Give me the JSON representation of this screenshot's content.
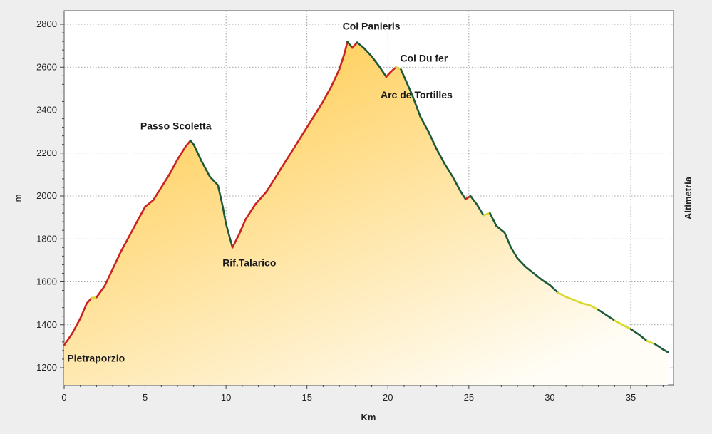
{
  "chart_data": {
    "type": "area",
    "xlabel": "Km",
    "ylabel": "m",
    "right_label": "Altimetria",
    "xlim": [
      0,
      37.5
    ],
    "ylim": [
      1130,
      2870
    ],
    "x_ticks": [
      0,
      5,
      10,
      15,
      20,
      25,
      30,
      35
    ],
    "y_ticks": [
      1200,
      1400,
      1600,
      1800,
      2000,
      2200,
      2400,
      2600,
      2800
    ],
    "grid": true,
    "colors": {
      "climb": "#cc2222",
      "descent": "#1d5a3a",
      "flat": "#d8d82a",
      "fill_top": "#ffc53a",
      "fill_bottom": "#fffdf6"
    },
    "profile": [
      [
        0,
        1305
      ],
      [
        0.5,
        1360
      ],
      [
        1.0,
        1430
      ],
      [
        1.4,
        1500
      ],
      [
        1.7,
        1525
      ],
      [
        2.0,
        1528
      ],
      [
        2.5,
        1580
      ],
      [
        3.0,
        1660
      ],
      [
        3.5,
        1740
      ],
      [
        4.0,
        1810
      ],
      [
        4.5,
        1880
      ],
      [
        5.0,
        1950
      ],
      [
        5.5,
        1980
      ],
      [
        6.0,
        2040
      ],
      [
        6.5,
        2100
      ],
      [
        7.0,
        2170
      ],
      [
        7.5,
        2230
      ],
      [
        7.8,
        2258
      ],
      [
        8.0,
        2240
      ],
      [
        8.5,
        2160
      ],
      [
        9.0,
        2090
      ],
      [
        9.5,
        2050
      ],
      [
        9.8,
        1950
      ],
      [
        10.0,
        1870
      ],
      [
        10.4,
        1760
      ],
      [
        10.8,
        1820
      ],
      [
        11.2,
        1890
      ],
      [
        11.8,
        1960
      ],
      [
        12.5,
        2020
      ],
      [
        13.0,
        2080
      ],
      [
        13.5,
        2140
      ],
      [
        14.0,
        2200
      ],
      [
        14.5,
        2260
      ],
      [
        15.0,
        2320
      ],
      [
        15.5,
        2380
      ],
      [
        16.0,
        2440
      ],
      [
        16.5,
        2510
      ],
      [
        17.0,
        2590
      ],
      [
        17.3,
        2660
      ],
      [
        17.5,
        2718
      ],
      [
        17.8,
        2690
      ],
      [
        18.1,
        2715
      ],
      [
        18.5,
        2690
      ],
      [
        19.0,
        2650
      ],
      [
        19.5,
        2600
      ],
      [
        19.9,
        2555
      ],
      [
        20.2,
        2580
      ],
      [
        20.5,
        2600
      ],
      [
        20.8,
        2590
      ],
      [
        21.5,
        2470
      ],
      [
        22.0,
        2370
      ],
      [
        22.5,
        2300
      ],
      [
        23.0,
        2220
      ],
      [
        23.5,
        2150
      ],
      [
        24.0,
        2090
      ],
      [
        24.5,
        2020
      ],
      [
        24.8,
        1985
      ],
      [
        25.1,
        2000
      ],
      [
        25.5,
        1960
      ],
      [
        25.9,
        1910
      ],
      [
        26.3,
        1920
      ],
      [
        26.7,
        1860
      ],
      [
        27.2,
        1830
      ],
      [
        27.6,
        1760
      ],
      [
        28.0,
        1710
      ],
      [
        28.5,
        1670
      ],
      [
        29.0,
        1640
      ],
      [
        29.5,
        1610
      ],
      [
        30.0,
        1585
      ],
      [
        30.5,
        1550
      ],
      [
        31.0,
        1530
      ],
      [
        31.5,
        1515
      ],
      [
        32.0,
        1500
      ],
      [
        32.5,
        1490
      ],
      [
        33.0,
        1470
      ],
      [
        33.5,
        1445
      ],
      [
        34.0,
        1420
      ],
      [
        34.5,
        1400
      ],
      [
        35.0,
        1380
      ],
      [
        35.5,
        1355
      ],
      [
        36.0,
        1325
      ],
      [
        36.5,
        1310
      ],
      [
        37.0,
        1285
      ],
      [
        37.3,
        1272
      ]
    ],
    "annotations": [
      {
        "text": "Pietraporzio",
        "x": 0.1,
        "y": 1305
      },
      {
        "text": "Passo Scoletta",
        "x": 7.7,
        "y": 2258
      },
      {
        "text": "Rif.Talarico",
        "x": 10.4,
        "y": 1760
      },
      {
        "text": "Col Panieris",
        "x": 17.9,
        "y": 2718
      },
      {
        "text": "Col Du fer",
        "x": 20.4,
        "y": 2600
      },
      {
        "text": "Arc de Tortilles",
        "x": 19.9,
        "y": 2555
      }
    ]
  }
}
